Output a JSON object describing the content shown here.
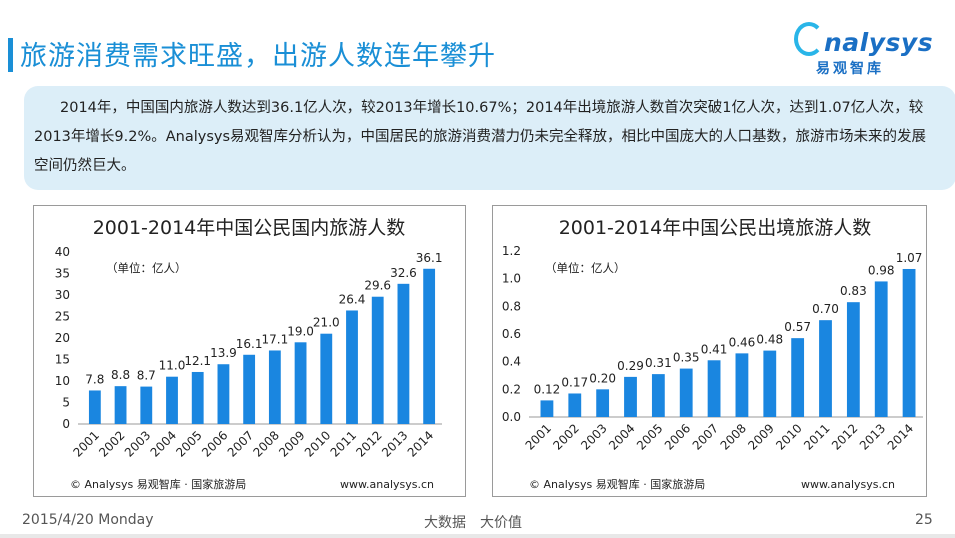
{
  "header": {
    "title": "旅游消费需求旺盛，出游人数连年攀升",
    "logo_word": "nalysys",
    "logo_sub": "易观智库"
  },
  "summary": {
    "text": "2014年，中国国内旅游人数达到36.1亿人次，较2013年增长10.67%；2014年出境旅游人数首次突破1亿人次，达到1.07亿人次，较2013年增长9.2%。Analysys易观智库分析认为，中国居民的旅游消费潜力仍未完全释放，相比中国庞大的人口基数，旅游市场未来的发展空间仍然巨大。"
  },
  "colors": {
    "accent": "#1a8fd6",
    "bar": "#1a86e0",
    "summary_bg": "#dceef8",
    "logo": "#1a6fc4"
  },
  "chart_data": [
    {
      "type": "bar",
      "title": "2001-2014年中国公民国内旅游人数",
      "unit_label": "（单位：亿人）",
      "categories": [
        "2001",
        "2002",
        "2003",
        "2004",
        "2005",
        "2006",
        "2007",
        "2008",
        "2009",
        "2010",
        "2011",
        "2012",
        "2013",
        "2014"
      ],
      "values": [
        7.8,
        8.8,
        8.7,
        11.0,
        12.1,
        13.9,
        16.1,
        17.1,
        19.0,
        21.0,
        26.4,
        29.6,
        32.6,
        36.1
      ],
      "value_labels": [
        "7.8",
        "8.8",
        "8.7",
        "11.0",
        "12.1",
        "13.9",
        "16.1",
        "17.1",
        "19.0",
        "21.0",
        "26.4",
        "29.6",
        "32.6",
        "36.1"
      ],
      "yticks": [
        "0",
        "5",
        "10",
        "15",
        "20",
        "25",
        "30",
        "35",
        "40"
      ],
      "ylim": [
        0,
        40
      ],
      "source": "© Analysys 易观智库 · 国家旅游局",
      "website": "www.analysys.cn",
      "grid": false
    },
    {
      "type": "bar",
      "title": "2001-2014年中国公民出境旅游人数",
      "unit_label": "（单位：亿人）",
      "categories": [
        "2001",
        "2002",
        "2003",
        "2004",
        "2005",
        "2006",
        "2007",
        "2008",
        "2009",
        "2010",
        "2011",
        "2012",
        "2013",
        "2014"
      ],
      "values": [
        0.12,
        0.17,
        0.2,
        0.29,
        0.31,
        0.35,
        0.41,
        0.46,
        0.48,
        0.57,
        0.7,
        0.83,
        0.98,
        1.07
      ],
      "value_labels": [
        "0.12",
        "0.17",
        "0.20",
        "0.29",
        "0.31",
        "0.35",
        "0.41",
        "0.46",
        "0.48",
        "0.57",
        "0.70",
        "0.83",
        "0.98",
        "1.07"
      ],
      "yticks": [
        "0.0",
        "0.2",
        "0.4",
        "0.6",
        "0.8",
        "1.0",
        "1.2"
      ],
      "ylim": [
        0,
        1.2
      ],
      "source": "© Analysys 易观智库 · 国家旅游局",
      "website": "www.analysys.cn",
      "grid": false
    }
  ],
  "footer": {
    "date": "2015/4/20 Monday",
    "slogan": "大数据　大价值",
    "page": "25"
  }
}
